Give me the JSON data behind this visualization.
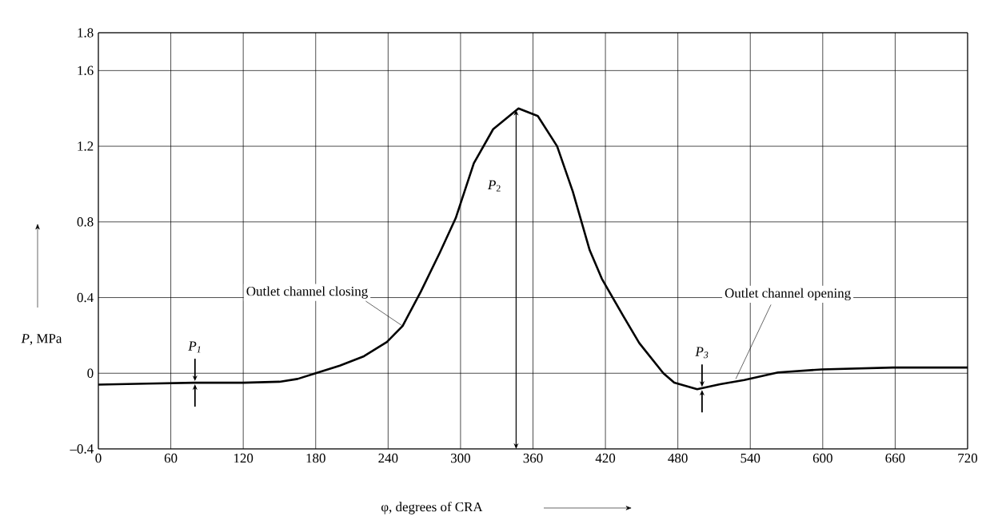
{
  "chart_data": {
    "type": "line",
    "xlabel": "φ, degrees of CRA",
    "ylabel": "*P*, MPa",
    "xlim": [
      0,
      720
    ],
    "ylim": [
      -0.4,
      1.8
    ],
    "xticks": [
      0,
      60,
      120,
      180,
      240,
      300,
      360,
      420,
      480,
      540,
      600,
      660,
      720
    ],
    "yticks": [
      {
        "value": -0.4,
        "label": "–0.4"
      },
      0,
      0.4,
      0.8,
      1.2,
      1.6,
      1.8
    ],
    "grid": true,
    "series": [
      {
        "color": "#000000",
        "x": [
          0,
          40,
          80,
          120,
          150,
          165,
          180,
          200,
          220,
          239,
          252,
          267,
          283,
          296,
          311,
          327,
          348,
          364,
          380,
          393,
          407,
          417,
          435,
          448,
          453,
          468,
          477,
          496,
          515,
          535,
          563,
          599,
          658,
          720
        ],
        "values": [
          -0.06,
          -0.055,
          -0.05,
          -0.05,
          -0.045,
          -0.03,
          0,
          0.04,
          0.09,
          0.165,
          0.25,
          0.43,
          0.64,
          0.82,
          1.11,
          1.29,
          1.4,
          1.36,
          1.2,
          0.96,
          0.65,
          0.5,
          0.3,
          0.16,
          0.12,
          0,
          -0.05,
          -0.084,
          -0.058,
          -0.036,
          0.004,
          0.02,
          0.03,
          0.03
        ]
      }
    ],
    "annotations": [
      {
        "text": "*P*$_{1}$",
        "x": 80,
        "y": -0.05
      },
      "*P*$_{2}$",
      {
        "text": "*P*$_{3}$",
        "x": 500,
        "y": -0.08
      },
      {
        "text": "Outlet channel closing",
        "x": 252,
        "y": 0.25
      },
      {
        "text": "Outlet channel opening",
        "x": 528,
        "y": -0.03
      }
    ]
  }
}
